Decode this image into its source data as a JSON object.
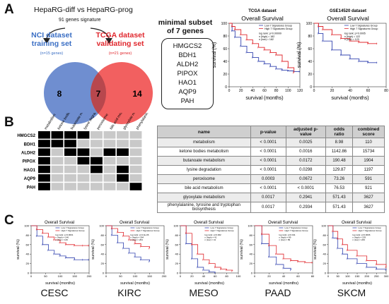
{
  "panels": {
    "a": "A",
    "b": "B",
    "c": "C"
  },
  "venn": {
    "title": "HepaRG-diff vs HepaRG-prog",
    "subtitle": "91 genes signature",
    "left_label_l1": "NCI dataset",
    "left_label_l2": "training set",
    "left_n": "(n=15 genes)",
    "right_label_l1": "TCGA dataset",
    "right_label_l2": "validating set",
    "right_n": "(n=21 genes)",
    "left_only": "8",
    "overlap": "7",
    "right_only": "14",
    "colors": {
      "left": "#6f8ed0",
      "right": "#f26060",
      "overlap": "#b8474d"
    }
  },
  "subset": {
    "title_l1": "minimal subset",
    "title_l2": "of 7 genes",
    "genes": [
      "HMGCS2",
      "BDH1",
      "ALDH2",
      "PIPOX",
      "HAO1",
      "AQP9",
      "PAH"
    ]
  },
  "heatmap": {
    "rows": [
      "HMGCS2",
      "BDH1",
      "ALDH2",
      "PIPOX",
      "HAO1",
      "AQP9",
      "PAH"
    ],
    "cols": [
      "metabolism",
      "ketone bodies metabolism",
      "butanoate metabolism",
      "lysine degradation",
      "peroxisome",
      "bile acid metabolism",
      "glyoxylate metabolism",
      "phenylalanine, tyrosine and tryptophan biosynthesis"
    ],
    "matrix": [
      [
        1,
        1,
        1,
        1,
        0,
        0,
        0,
        0
      ],
      [
        1,
        1,
        1,
        0,
        0,
        0,
        0,
        0
      ],
      [
        1,
        0,
        1,
        1,
        0,
        1,
        1,
        0
      ],
      [
        1,
        0,
        0,
        1,
        1,
        0,
        0,
        0
      ],
      [
        1,
        0,
        0,
        0,
        1,
        0,
        1,
        0
      ],
      [
        1,
        0,
        0,
        0,
        0,
        0,
        1,
        0
      ],
      [
        1,
        0,
        0,
        0,
        0,
        0,
        0,
        1
      ]
    ],
    "colors": {
      "on": "#000000",
      "off": "#c9c9c9"
    }
  },
  "enrichment_table": {
    "headers": [
      "name",
      "p-value",
      "adjusted p-value",
      "odds ratio",
      "combined score"
    ],
    "rows": [
      [
        "metabolism",
        "< 0.0001",
        "0.0025",
        "8.98",
        "110"
      ],
      [
        "ketone bodies metabolism",
        "< 0.0001",
        "0.0016",
        "1142.86",
        "15734"
      ],
      [
        "butanoate metabolism",
        "< 0.0001",
        "0.0172",
        "190.48",
        "1904"
      ],
      [
        "lysine degradation",
        "< 0.0001",
        "0.0298",
        "129.87",
        "1197"
      ],
      [
        "peroxisome",
        "0.0003",
        "0.0672",
        "73.26",
        "591"
      ],
      [
        "bile acid metabolism",
        "< 0.0001",
        "< 0.0001",
        "76.53",
        "921"
      ],
      [
        "glyoxylate metabolism",
        "0.0017",
        "0.2941",
        "571.43",
        "3627"
      ],
      [
        "phenylalanine, tyrosine and tryptophan biosynthesis",
        "0.0017",
        "0.2934",
        "571.43",
        "3627"
      ]
    ]
  },
  "chart_data": [
    {
      "type": "line",
      "panel": "A",
      "dataset": "TCGA dataset",
      "title": "Overall Survival",
      "xlabel": "survival (months)",
      "ylabel": "survival (%)",
      "xlim": [
        0,
        120
      ],
      "ylim": [
        0,
        100
      ],
      "xticks": [
        0,
        20,
        40,
        60,
        80,
        100,
        120
      ],
      "yticks": [
        0,
        20,
        40,
        60,
        80,
        100
      ],
      "legend": [
        "Low 7 Signatures Group",
        "High 7 Signatures Group"
      ],
      "stats": [
        "log rank: p=0.00009",
        "n (high) = 182",
        "n (low) = 182"
      ],
      "series": [
        {
          "name": "Low 7 Signatures Group",
          "color": "#3445b0",
          "x": [
            0,
            5,
            10,
            20,
            30,
            40,
            50,
            60,
            70,
            80,
            90,
            100,
            110,
            120
          ],
          "y": [
            100,
            88,
            78,
            64,
            54,
            46,
            40,
            36,
            32,
            28,
            26,
            25,
            24,
            24
          ]
        },
        {
          "name": "High 7 Signatures Group",
          "color": "#e0282e",
          "x": [
            0,
            5,
            10,
            20,
            30,
            40,
            50,
            60,
            70,
            80,
            90,
            100,
            110
          ],
          "y": [
            100,
            95,
            90,
            82,
            74,
            68,
            62,
            58,
            54,
            50,
            40,
            30,
            22
          ]
        }
      ]
    },
    {
      "type": "line",
      "panel": "A",
      "dataset": "GSE14520 dataset",
      "title": "Overall Survival",
      "xlabel": "survival (months)",
      "ylabel": "survival (%)",
      "xlim": [
        0,
        80
      ],
      "ylim": [
        0,
        100
      ],
      "xticks": [
        0,
        20,
        40,
        60,
        80
      ],
      "yticks": [
        0,
        20,
        40,
        60,
        80,
        100
      ],
      "legend": [
        "Low 7 Signatures Group",
        "High 7 Signatures Group"
      ],
      "stats": [
        "log rank: p=0.0005",
        "n (high) = 122",
        "n (low) = 123"
      ],
      "series": [
        {
          "name": "Low 7 Signatures Group",
          "color": "#3445b0",
          "x": [
            0,
            5,
            10,
            20,
            30,
            40,
            50,
            60,
            70
          ],
          "y": [
            100,
            84,
            72,
            58,
            50,
            44,
            40,
            38,
            38
          ]
        },
        {
          "name": "High 7 Signatures Group",
          "color": "#e0282e",
          "x": [
            0,
            5,
            10,
            20,
            30,
            40,
            50,
            60,
            70
          ],
          "y": [
            100,
            95,
            90,
            82,
            76,
            72,
            70,
            68,
            68
          ]
        }
      ]
    },
    {
      "type": "line",
      "panel": "C",
      "cancer": "CESC",
      "title": "Overall Survival",
      "xlabel": "survival (months)",
      "ylabel": "survival (%)",
      "xlim": [
        0,
        200
      ],
      "ylim": [
        0,
        100
      ],
      "xticks": [
        0,
        50,
        100,
        150,
        200
      ],
      "yticks": [
        0,
        20,
        40,
        60,
        80,
        100
      ],
      "legend": [
        "Low 7 Signatures Group",
        "High 7 Signatures Group"
      ],
      "stats": [
        "log rank: p<0.0001",
        "n (high) = 146",
        "n (low) = 146"
      ],
      "series": [
        {
          "name": "Low 7 Signatures Group",
          "color": "#3445b0",
          "x": [
            0,
            20,
            40,
            60,
            80,
            100,
            120,
            150,
            180,
            200
          ],
          "y": [
            100,
            78,
            60,
            48,
            40,
            36,
            32,
            28,
            28,
            28
          ]
        },
        {
          "name": "High 7 Signatures Group",
          "color": "#e0282e",
          "x": [
            0,
            20,
            40,
            60,
            80,
            100,
            120,
            150,
            180,
            200
          ],
          "y": [
            100,
            92,
            84,
            76,
            70,
            64,
            60,
            58,
            58,
            58
          ]
        }
      ]
    },
    {
      "type": "line",
      "panel": "C",
      "cancer": "KIRC",
      "title": "Overall Survival",
      "xlabel": "survival (months)",
      "ylabel": "survival (%)",
      "xlim": [
        0,
        200
      ],
      "ylim": [
        0,
        100
      ],
      "xticks": [
        0,
        50,
        100,
        150,
        200
      ],
      "yticks": [
        0,
        20,
        40,
        60,
        80,
        100
      ],
      "legend": [
        "Low 7 Signatures Group",
        "High 7 Signatures Group"
      ],
      "stats": [
        "log rank: p=4.3e-06",
        "n (high) = 264",
        "n (low) = 264"
      ],
      "series": [
        {
          "name": "Low 7 Signatures Group",
          "color": "#3445b0",
          "x": [
            0,
            20,
            40,
            60,
            80,
            100,
            120,
            150
          ],
          "y": [
            100,
            80,
            64,
            52,
            42,
            34,
            28,
            24
          ]
        },
        {
          "name": "High 7 Signatures Group",
          "color": "#e0282e",
          "x": [
            0,
            20,
            40,
            60,
            80,
            100,
            120,
            150
          ],
          "y": [
            100,
            94,
            86,
            78,
            70,
            62,
            56,
            52
          ]
        }
      ]
    },
    {
      "type": "line",
      "panel": "C",
      "cancer": "MESO",
      "title": "Overall Survival",
      "xlabel": "survival (months)",
      "ylabel": "survival (%)",
      "xlim": [
        0,
        100
      ],
      "ylim": [
        0,
        100
      ],
      "xticks": [
        0,
        20,
        40,
        60,
        80,
        100
      ],
      "yticks": [
        0,
        20,
        40,
        60,
        80,
        100
      ],
      "legend": [
        "Low 7 Signatures Group",
        "High 7 Signatures Group"
      ],
      "stats": [
        "log rank: p=0.002",
        "n (high) = 41",
        "n (low) = 41"
      ],
      "series": [
        {
          "name": "Low 7 Signatures Group",
          "color": "#3445b0",
          "x": [
            0,
            10,
            20,
            30,
            40,
            50,
            60
          ],
          "y": [
            100,
            62,
            30,
            12,
            6,
            2,
            0
          ]
        },
        {
          "name": "High 7 Signatures Group",
          "color": "#e0282e",
          "x": [
            0,
            10,
            20,
            30,
            40,
            50,
            60,
            70,
            80,
            90
          ],
          "y": [
            100,
            84,
            60,
            40,
            28,
            20,
            12,
            8,
            6,
            4
          ]
        }
      ]
    },
    {
      "type": "line",
      "panel": "C",
      "cancer": "PAAD",
      "title": "Overall Survival",
      "xlabel": "survival (months)",
      "ylabel": "survival (%)",
      "xlim": [
        0,
        80
      ],
      "ylim": [
        0,
        100
      ],
      "xticks": [
        0,
        20,
        40,
        60,
        80
      ],
      "yticks": [
        0,
        20,
        40,
        60,
        80,
        100
      ],
      "legend": [
        "Low 7 Signatures Group",
        "High 7 Signatures Group"
      ],
      "stats": [
        "log rank: p=0.011",
        "n (high) = 89",
        "n (low) = 89"
      ],
      "series": [
        {
          "name": "Low 7 Signatures Group",
          "color": "#3445b0",
          "x": [
            0,
            10,
            20,
            30,
            40,
            50
          ],
          "y": [
            100,
            62,
            34,
            18,
            10,
            6
          ]
        },
        {
          "name": "High 7 Signatures Group",
          "color": "#e0282e",
          "x": [
            0,
            10,
            20,
            30,
            40,
            50,
            60,
            70,
            80
          ],
          "y": [
            100,
            82,
            58,
            40,
            30,
            26,
            24,
            22,
            22
          ]
        }
      ]
    },
    {
      "type": "line",
      "panel": "C",
      "cancer": "SKCM",
      "title": "Overall Survival",
      "xlabel": "survival (months)",
      "ylabel": "survival (%)",
      "xlim": [
        0,
        300
      ],
      "ylim": [
        0,
        100
      ],
      "xticks": [
        0,
        50,
        100,
        150,
        200,
        250,
        300
      ],
      "yticks": [
        0,
        20,
        40,
        60,
        80,
        100
      ],
      "legend": [
        "Low 7 Signatures Group",
        "High 7 Signatures Group"
      ],
      "stats": [
        "log rank: p=0.0006",
        "n (high) = 229",
        "n (low) = 229"
      ],
      "series": [
        {
          "name": "Low 7 Signatures Group",
          "color": "#3445b0",
          "x": [
            0,
            25,
            50,
            75,
            100,
            150,
            200,
            250,
            300
          ],
          "y": [
            100,
            74,
            52,
            40,
            30,
            20,
            12,
            8,
            6
          ]
        },
        {
          "name": "High 7 Signatures Group",
          "color": "#e0282e",
          "x": [
            0,
            25,
            50,
            75,
            100,
            150,
            200,
            250,
            300
          ],
          "y": [
            100,
            88,
            72,
            60,
            48,
            36,
            26,
            18,
            12
          ]
        }
      ]
    }
  ]
}
